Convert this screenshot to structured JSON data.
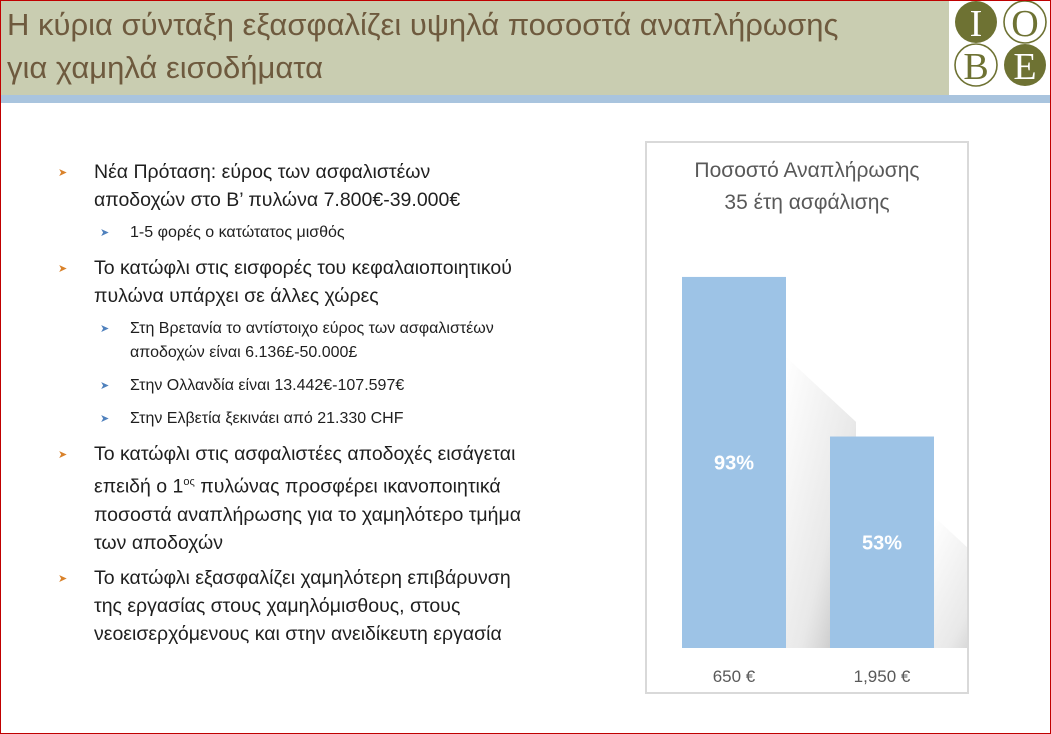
{
  "header": {
    "title_line1": "Η κύρια σύνταξη εξασφαλίζει υψηλά ποσοστά αναπλήρωσης",
    "title_line2": "για χαμηλά εισοδήματα",
    "logo_letters": [
      "Ι",
      "Ο",
      "Β",
      "Ε"
    ]
  },
  "colors": {
    "header_bg": "#c9cdb1",
    "title_text": "#6e5a3e",
    "accent_bar": "#a9c4de",
    "logo_olive": "#6e7233",
    "bar_fill": "#9dc3e6",
    "bullet_orange": "#d9822b",
    "bullet_blue": "#4f81bd"
  },
  "bullets": [
    {
      "level": 1,
      "text_a": "Νέα Πρόταση: εύρος των ασφαλιστέων",
      "text_b": "αποδοχών στο Β’ πυλώνα 7.800€-39.000€"
    },
    {
      "level": 2,
      "text_a": "1-5 φορές ο κατώτατος μισθός"
    },
    {
      "level": 1,
      "text_a": "Το κατώφλι στις εισφορές του κεφαλαιοποιητικού",
      "text_b": "πυλώνα υπάρχει σε άλλες χώρες"
    },
    {
      "level": 2,
      "text_a": "Στη Βρετανία το αντίστοιχο εύρος των ασφαλιστέων",
      "text_b": "αποδοχών είναι 6.136£-50.000£"
    },
    {
      "level": 2,
      "text_a": "Στην Ολλανδία είναι 13.442€-107.597€"
    },
    {
      "level": 2,
      "text_a": "Στην Ελβετία ξεκινάει από 21.330 CHF"
    },
    {
      "level": 1,
      "text_a": "Το κατώφλι στις ασφαλιστέες αποδοχές εισάγεται",
      "text_b_pre": "επειδή  ο 1",
      "text_b_sup": "ος",
      "text_b_post": " πυλώνας προσφέρει ικανοποιητικά",
      "text_c": "ποσοστά αναπλήρωσης για το χαμηλότερο τμήμα",
      "text_d": "των αποδοχών"
    },
    {
      "level": 1,
      "text_a": "Το κατώφλι εξασφαλίζει χαμηλότερη επιβάρυνση",
      "text_b": "της εργασίας στους χαμηλόμισθους, στους",
      "text_c": "νεοεισερχόμενους και στην ανειδίκευτη εργασία"
    }
  ],
  "chart_data": {
    "type": "bar",
    "title": "Ποσοστό Αναπλήρωσης",
    "subtitle": "35 έτη ασφάλισης",
    "categories": [
      "650 €",
      "1,950 €"
    ],
    "values": [
      93,
      53
    ],
    "data_labels": [
      "93%",
      "53%"
    ],
    "ylim": [
      0,
      100
    ],
    "grid": false,
    "legend": "none"
  }
}
